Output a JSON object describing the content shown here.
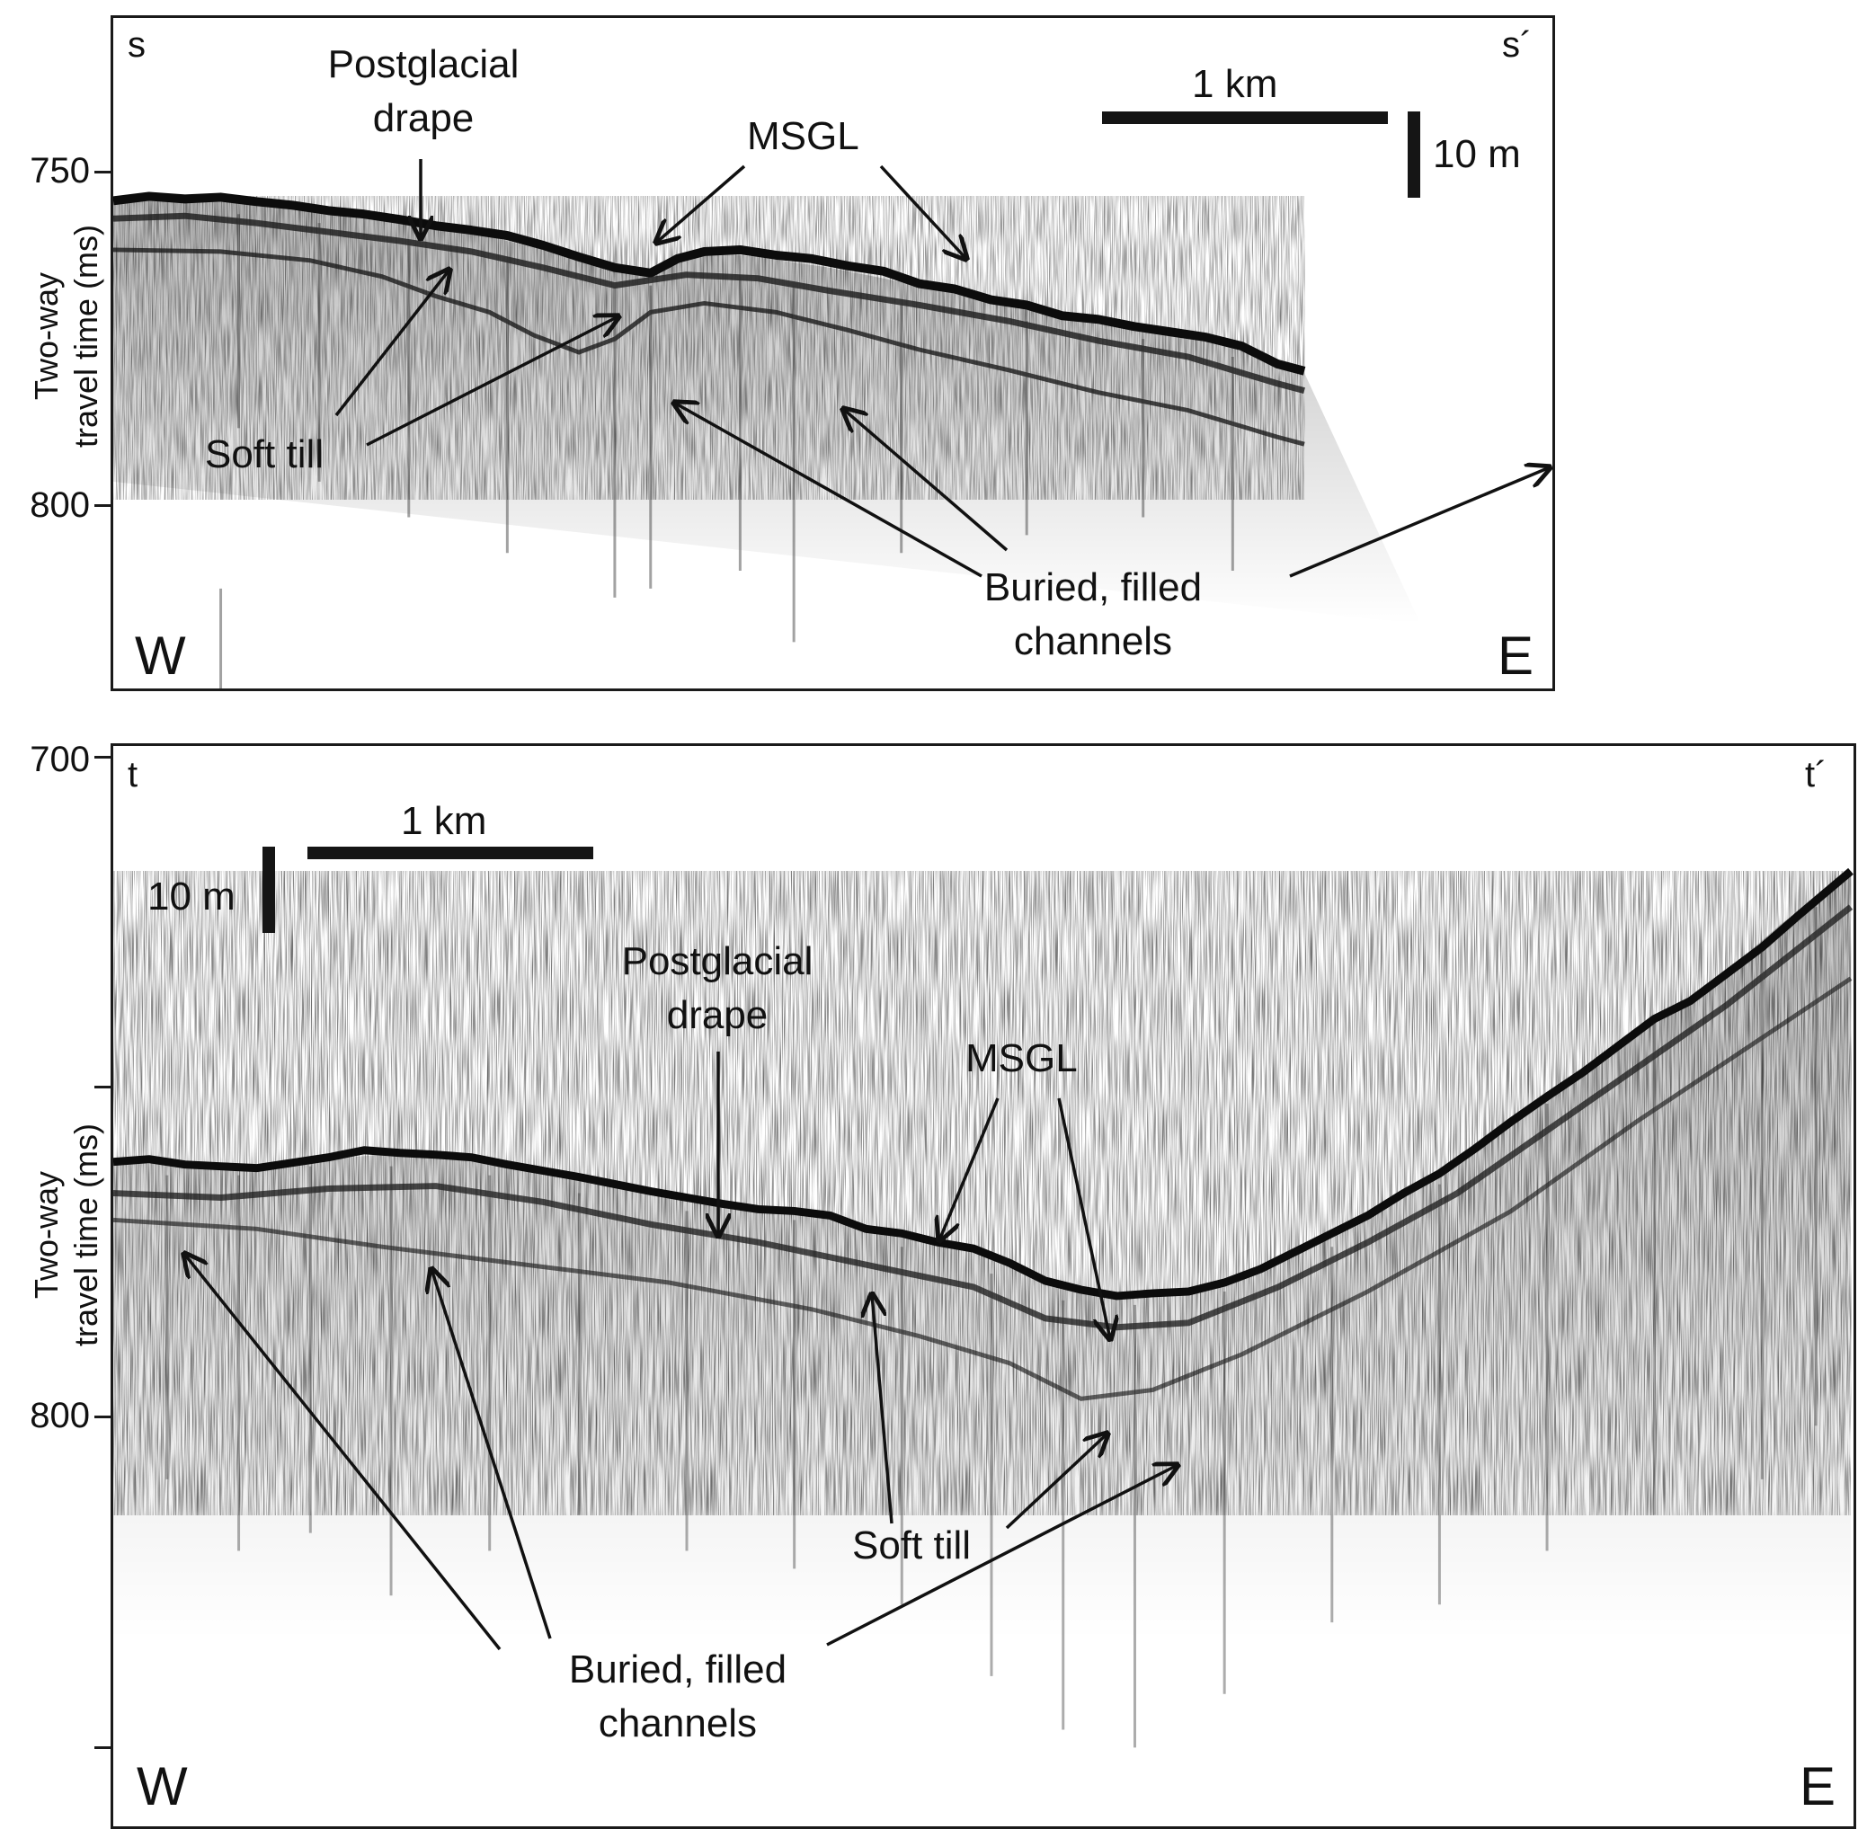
{
  "panel_top": {
    "start_label": "s",
    "end_label": "s´",
    "west_label": "W",
    "east_label": "E",
    "y_axis_title_line1": "Two-way",
    "y_axis_title_line2": "travel time (ms)",
    "y_ticks": [
      "750",
      "800"
    ],
    "scale_horizontal": "1 km",
    "scale_vertical": "10 m",
    "annotations": {
      "drape_line1": "Postglacial",
      "drape_line2": "drape",
      "msgl": "MSGL",
      "soft_till": "Soft till",
      "channels_line1": "Buried, filled",
      "channels_line2": "channels"
    }
  },
  "panel_bottom": {
    "start_label": "t",
    "end_label": "t´",
    "west_label": "W",
    "east_label": "E",
    "y_axis_title_line1": "Two-way",
    "y_axis_title_line2": "travel time (ms)",
    "y_ticks": [
      "700",
      "800"
    ],
    "scale_horizontal": "1 km",
    "scale_vertical": "10 m",
    "annotations": {
      "drape_line1": "Postglacial",
      "drape_line2": "drape",
      "msgl": "MSGL",
      "soft_till": "Soft till",
      "channels_line1": "Buried, filled",
      "channels_line2": "channels"
    }
  }
}
